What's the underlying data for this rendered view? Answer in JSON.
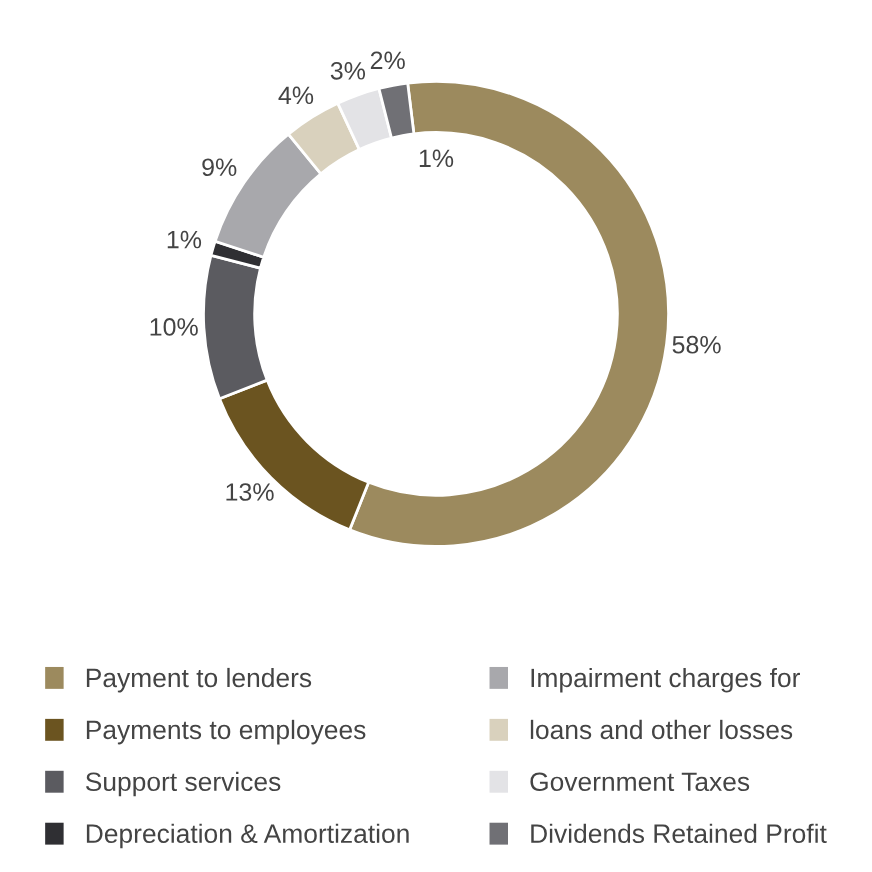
{
  "chart_data": {
    "type": "donut",
    "categories": [
      "Payment to lenders",
      "Payments to employees",
      "Support services",
      "Depreciation & Amortization",
      "Impairment charges for",
      "loans and other losses",
      "Government Taxes",
      "Dividends Retained Profit"
    ],
    "values": [
      58,
      13,
      10,
      1,
      9,
      4,
      3,
      2
    ],
    "colors": [
      "#9c8a5e",
      "#6b5420",
      "#5b5b60",
      "#2f2f33",
      "#a8a8ac",
      "#d9d1bd",
      "#e3e3e6",
      "#707075"
    ],
    "value_labels": [
      "58%",
      "13%",
      "10%",
      "1%",
      "9%",
      "4%",
      "3%",
      "2%"
    ],
    "annotations": [
      "1%"
    ],
    "legend": "bottom"
  }
}
